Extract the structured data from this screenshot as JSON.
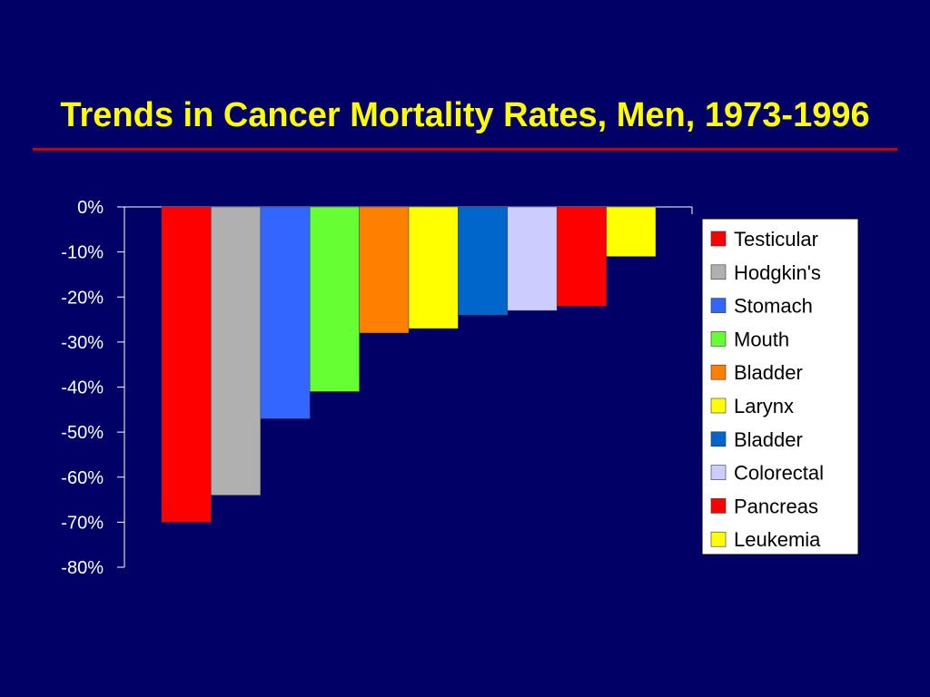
{
  "slide": {
    "title": "Trends in Cancer Mortality Rates, Men, 1973-1996",
    "colors": {
      "background": "#000066",
      "title": "#ffff00",
      "rule": "#cc0000"
    }
  },
  "chart_data": {
    "type": "bar",
    "title": "Trends in Cancer Mortality Rates, Men, 1973-1996",
    "xlabel": "",
    "ylabel": "",
    "ylim": [
      -80,
      0
    ],
    "yticks": [
      0,
      -10,
      -20,
      -30,
      -40,
      -50,
      -60,
      -70,
      -80
    ],
    "ytick_labels": [
      "0%",
      "-10%",
      "-20%",
      "-30%",
      "-40%",
      "-50%",
      "-60%",
      "-70%",
      "-80%"
    ],
    "grid": false,
    "legend_position": "right",
    "series": [
      {
        "name": "Testicular",
        "value": -70,
        "color": "#ff0000"
      },
      {
        "name": "Hodgkin's",
        "value": -64,
        "color": "#b0b0b0"
      },
      {
        "name": "Stomach",
        "value": -47,
        "color": "#3366ff"
      },
      {
        "name": "Mouth",
        "value": -41,
        "color": "#66ff33"
      },
      {
        "name": "Bladder",
        "value": -28,
        "color": "#ff8000"
      },
      {
        "name": "Larynx",
        "value": -27,
        "color": "#ffff00"
      },
      {
        "name": "Bladder",
        "value": -24,
        "color": "#0066cc"
      },
      {
        "name": "Colorectal",
        "value": -23,
        "color": "#ccccff"
      },
      {
        "name": "Pancreas",
        "value": -22,
        "color": "#ff0000"
      },
      {
        "name": "Leukemia",
        "value": -11,
        "color": "#ffff00"
      }
    ]
  }
}
